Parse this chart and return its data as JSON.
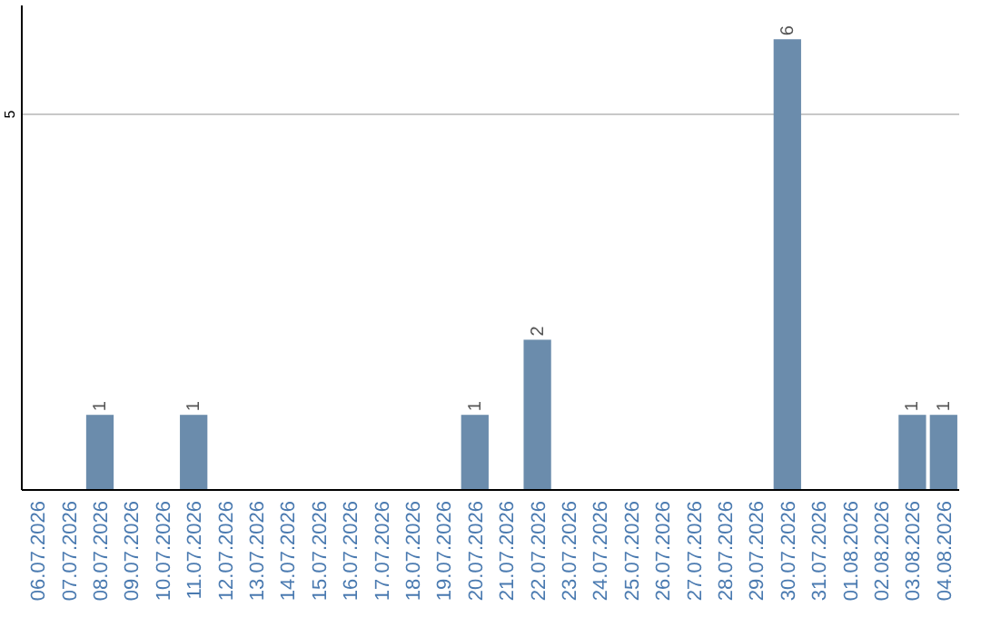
{
  "chart_data": {
    "type": "bar",
    "categories": [
      "06.07.2026",
      "07.07.2026",
      "08.07.2026",
      "09.07.2026",
      "10.07.2026",
      "11.07.2026",
      "12.07.2026",
      "13.07.2026",
      "14.07.2026",
      "15.07.2026",
      "16.07.2026",
      "17.07.2026",
      "18.07.2026",
      "19.07.2026",
      "20.07.2026",
      "21.07.2026",
      "22.07.2026",
      "23.07.2026",
      "24.07.2026",
      "25.07.2026",
      "26.07.2026",
      "27.07.2026",
      "28.07.2026",
      "29.07.2026",
      "30.07.2026",
      "31.07.2026",
      "01.08.2026",
      "02.08.2026",
      "03.08.2026",
      "04.08.2026"
    ],
    "values": [
      0,
      0,
      1,
      0,
      0,
      1,
      0,
      0,
      0,
      0,
      0,
      0,
      0,
      0,
      1,
      0,
      2,
      0,
      0,
      0,
      0,
      0,
      0,
      0,
      6,
      0,
      0,
      0,
      1,
      1
    ],
    "value_labels": [
      null,
      null,
      "1",
      null,
      null,
      "1",
      null,
      null,
      null,
      null,
      null,
      null,
      null,
      null,
      "1",
      null,
      "2",
      null,
      null,
      null,
      null,
      null,
      null,
      null,
      "6",
      null,
      null,
      null,
      "1",
      "1"
    ],
    "color": "#6b8cac",
    "ylim": [
      0,
      6.45
    ],
    "yticks": [
      5
    ],
    "grid": "y"
  }
}
